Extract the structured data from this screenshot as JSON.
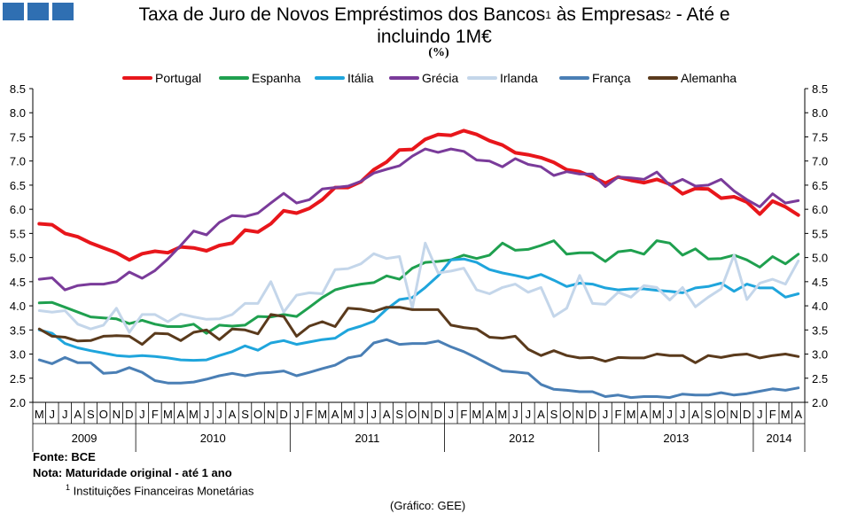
{
  "header": {
    "title_line1_a": "Taxa de Juro de Novos Empréstimos dos Bancos",
    "title_sup1": "1",
    "title_line1_b": " às Empresas",
    "title_sup2": "2",
    "title_line1_c": " - Até e",
    "title_line2": "incluindo 1M€",
    "unit": "(%)"
  },
  "notes": {
    "source": "Fonte: BCE",
    "note": "Nota: Maturidade original - até 1 ano",
    "footnote_mark": "1",
    "footnote": "Instituições Financeiras Monetárias",
    "credit": "(Gráfico: GEE)"
  },
  "colors": {
    "brand": "#2f6fb2"
  },
  "chart_data": {
    "type": "line",
    "title": "Taxa de Juro de Novos Empréstimos dos Bancos às Empresas - Até e incluindo 1M€",
    "ylabel": "%",
    "xlabel": "",
    "ylim": [
      2.0,
      8.5
    ],
    "yticks": [
      "2.0",
      "2.5",
      "3.0",
      "3.5",
      "4.0",
      "4.5",
      "5.0",
      "5.5",
      "6.0",
      "6.5",
      "7.0",
      "7.5",
      "8.0",
      "8.5"
    ],
    "grid": false,
    "legend_position": "top",
    "month_labels": [
      "M",
      "J",
      "J",
      "A",
      "S",
      "O",
      "N",
      "D",
      "J",
      "F",
      "M",
      "A",
      "M",
      "J",
      "J",
      "A",
      "S",
      "O",
      "N",
      "D",
      "J",
      "F",
      "M",
      "A",
      "M",
      "J",
      "J",
      "A",
      "S",
      "O",
      "N",
      "D",
      "J",
      "F",
      "M",
      "A",
      "M",
      "J",
      "J",
      "A",
      "S",
      "O",
      "N",
      "D",
      "J",
      "F",
      "M",
      "A",
      "M",
      "J",
      "J",
      "A",
      "S",
      "O",
      "N",
      "D",
      "J",
      "F",
      "M",
      "A"
    ],
    "year_groups": [
      {
        "label": "2009",
        "start": 0,
        "count": 8
      },
      {
        "label": "2010",
        "start": 8,
        "count": 12
      },
      {
        "label": "2011",
        "start": 20,
        "count": 12
      },
      {
        "label": "2012",
        "start": 32,
        "count": 12
      },
      {
        "label": "2013",
        "start": 44,
        "count": 12
      },
      {
        "label": "2014",
        "start": 56,
        "count": 4
      }
    ],
    "series": [
      {
        "name": "Portugal",
        "color": "#e8161b",
        "width": 4,
        "values": [
          5.7,
          5.68,
          5.5,
          5.43,
          5.3,
          5.2,
          5.1,
          4.95,
          5.08,
          5.13,
          5.1,
          5.22,
          5.2,
          5.14,
          5.25,
          5.3,
          5.57,
          5.53,
          5.7,
          5.97,
          5.92,
          6.02,
          6.2,
          6.45,
          6.45,
          6.57,
          6.82,
          6.98,
          7.23,
          7.24,
          7.45,
          7.55,
          7.53,
          7.63,
          7.55,
          7.42,
          7.33,
          7.17,
          7.13,
          7.07,
          6.97,
          6.82,
          6.78,
          6.67,
          6.54,
          6.67,
          6.6,
          6.55,
          6.62,
          6.52,
          6.32,
          6.43,
          6.42,
          6.23,
          6.26,
          6.15,
          5.9,
          6.17,
          6.05,
          5.88
        ]
      },
      {
        "name": "Espanha",
        "color": "#1fa04f",
        "width": 3,
        "values": [
          4.06,
          4.07,
          3.97,
          3.87,
          3.77,
          3.75,
          3.73,
          3.63,
          3.7,
          3.62,
          3.57,
          3.57,
          3.62,
          3.43,
          3.6,
          3.58,
          3.6,
          3.78,
          3.77,
          3.82,
          3.78,
          3.97,
          4.17,
          4.33,
          4.4,
          4.45,
          4.48,
          4.62,
          4.55,
          4.78,
          4.9,
          4.92,
          4.95,
          5.05,
          4.98,
          5.05,
          5.3,
          5.15,
          5.17,
          5.25,
          5.35,
          5.07,
          5.1,
          5.1,
          4.92,
          5.12,
          5.15,
          5.07,
          5.35,
          5.3,
          5.05,
          5.18,
          4.97,
          4.98,
          5.05,
          4.95,
          4.8,
          5.02,
          4.87,
          5.07
        ]
      },
      {
        "name": "Itália",
        "color": "#1fa5dc",
        "width": 3,
        "values": [
          3.5,
          3.43,
          3.22,
          3.13,
          3.07,
          3.02,
          2.97,
          2.95,
          2.97,
          2.95,
          2.92,
          2.88,
          2.87,
          2.88,
          2.97,
          3.05,
          3.17,
          3.08,
          3.23,
          3.28,
          3.2,
          3.25,
          3.3,
          3.33,
          3.5,
          3.58,
          3.68,
          3.93,
          4.13,
          4.17,
          4.38,
          4.62,
          4.95,
          4.97,
          4.9,
          4.75,
          4.68,
          4.63,
          4.57,
          4.65,
          4.53,
          4.4,
          4.47,
          4.45,
          4.37,
          4.33,
          4.35,
          4.35,
          4.32,
          4.3,
          4.27,
          4.37,
          4.4,
          4.47,
          4.3,
          4.45,
          4.37,
          4.37,
          4.18,
          4.25
        ]
      },
      {
        "name": "Grécia",
        "color": "#7a3b9a",
        "width": 3,
        "values": [
          4.55,
          4.58,
          4.33,
          4.42,
          4.45,
          4.45,
          4.5,
          4.7,
          4.57,
          4.73,
          4.97,
          5.25,
          5.55,
          5.47,
          5.73,
          5.87,
          5.85,
          5.92,
          6.13,
          6.33,
          6.13,
          6.2,
          6.42,
          6.45,
          6.48,
          6.58,
          6.75,
          6.83,
          6.9,
          7.1,
          7.25,
          7.18,
          7.25,
          7.2,
          7.02,
          7.0,
          6.88,
          7.05,
          6.93,
          6.88,
          6.7,
          6.78,
          6.73,
          6.73,
          6.47,
          6.67,
          6.65,
          6.62,
          6.77,
          6.5,
          6.62,
          6.48,
          6.5,
          6.62,
          6.38,
          6.2,
          6.05,
          6.32,
          6.13,
          6.18
        ]
      },
      {
        "name": "Irlanda",
        "color": "#c4d6ea",
        "width": 3,
        "values": [
          3.9,
          3.87,
          3.9,
          3.62,
          3.52,
          3.6,
          3.95,
          3.45,
          3.82,
          3.82,
          3.67,
          3.83,
          3.77,
          3.72,
          3.73,
          3.82,
          4.05,
          4.05,
          4.5,
          3.87,
          4.22,
          4.27,
          4.25,
          4.75,
          4.77,
          4.87,
          5.08,
          4.98,
          5.02,
          3.95,
          5.3,
          4.68,
          4.72,
          4.78,
          4.33,
          4.25,
          4.38,
          4.45,
          4.28,
          4.38,
          3.78,
          3.95,
          4.63,
          4.05,
          4.03,
          4.28,
          4.18,
          4.42,
          4.38,
          4.12,
          4.38,
          3.98,
          4.18,
          4.35,
          5.05,
          4.13,
          4.47,
          4.55,
          4.45,
          4.93
        ]
      },
      {
        "name": "França",
        "color": "#4a7fb5",
        "width": 3,
        "values": [
          2.88,
          2.8,
          2.93,
          2.82,
          2.82,
          2.6,
          2.62,
          2.72,
          2.62,
          2.45,
          2.4,
          2.4,
          2.42,
          2.48,
          2.55,
          2.6,
          2.55,
          2.6,
          2.62,
          2.65,
          2.55,
          2.62,
          2.7,
          2.77,
          2.92,
          2.97,
          3.23,
          3.3,
          3.2,
          3.22,
          3.22,
          3.27,
          3.15,
          3.05,
          2.92,
          2.78,
          2.65,
          2.63,
          2.6,
          2.37,
          2.27,
          2.25,
          2.22,
          2.22,
          2.12,
          2.15,
          2.1,
          2.12,
          2.12,
          2.1,
          2.17,
          2.15,
          2.15,
          2.2,
          2.15,
          2.18,
          2.23,
          2.28,
          2.25,
          2.3
        ]
      },
      {
        "name": "Alemanha",
        "color": "#5a3a1c",
        "width": 3,
        "values": [
          3.52,
          3.37,
          3.35,
          3.27,
          3.28,
          3.37,
          3.38,
          3.37,
          3.2,
          3.43,
          3.42,
          3.28,
          3.45,
          3.5,
          3.3,
          3.52,
          3.5,
          3.42,
          3.82,
          3.78,
          3.37,
          3.58,
          3.67,
          3.57,
          3.95,
          3.93,
          3.88,
          3.97,
          3.97,
          3.92,
          3.92,
          3.92,
          3.6,
          3.55,
          3.52,
          3.35,
          3.33,
          3.37,
          3.1,
          2.97,
          3.07,
          2.97,
          2.92,
          2.93,
          2.85,
          2.93,
          2.92,
          2.92,
          3.0,
          2.97,
          2.97,
          2.82,
          2.97,
          2.93,
          2.98,
          3.0,
          2.92,
          2.97,
          3.0,
          2.95
        ]
      }
    ]
  }
}
